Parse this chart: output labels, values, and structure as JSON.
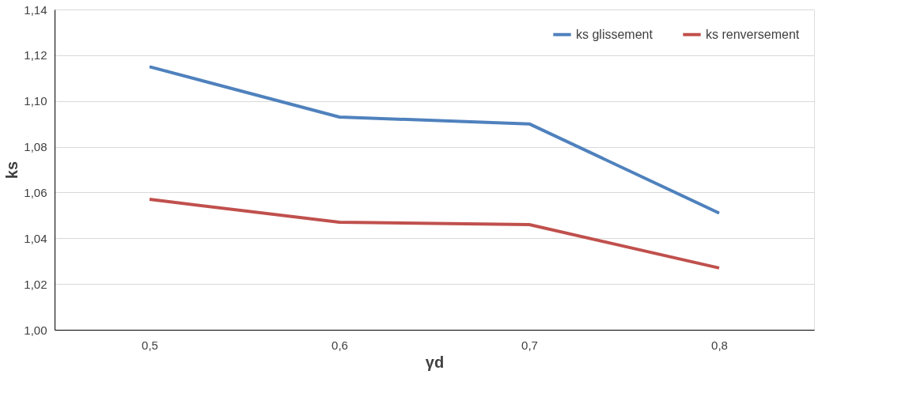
{
  "chart_data": {
    "type": "line",
    "xlabel": "γd",
    "ylabel": "ks",
    "categories": [
      "0,5",
      "0,6",
      "0,7",
      "0,8"
    ],
    "series": [
      {
        "name": "ks glissement",
        "color": "#4f81bd",
        "values": [
          1.115,
          1.093,
          1.09,
          1.051
        ]
      },
      {
        "name": "ks renversement",
        "color": "#c0504d",
        "values": [
          1.057,
          1.047,
          1.046,
          1.027
        ]
      }
    ],
    "ylim": [
      1.0,
      1.14
    ],
    "yticks": [
      {
        "value": 1.0,
        "label": "1,00"
      },
      {
        "value": 1.02,
        "label": "1,02"
      },
      {
        "value": 1.04,
        "label": "1,04"
      },
      {
        "value": 1.06,
        "label": "1,06"
      },
      {
        "value": 1.08,
        "label": "1,08"
      },
      {
        "value": 1.1,
        "label": "1,10"
      },
      {
        "value": 1.12,
        "label": "1,12"
      },
      {
        "value": 1.14,
        "label": "1,14"
      }
    ],
    "grid": "y",
    "legend": "top right",
    "marker": "none",
    "line_style": "solid"
  }
}
